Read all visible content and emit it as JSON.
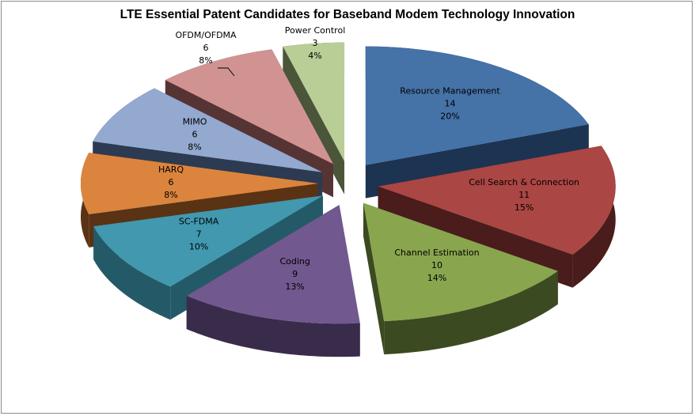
{
  "chart_data": {
    "type": "pie",
    "style": "3d-exploded",
    "title": "LTE Essential Patent Candidates for Baseband Modem Technology Innovation",
    "slices": [
      {
        "label": "Resource Management",
        "value": 14,
        "percent": "20%",
        "color": "#4572a7",
        "side": "#1d3352"
      },
      {
        "label": "Cell Search & Connection",
        "value": 11,
        "percent": "15%",
        "color": "#aa4643",
        "side": "#4a1c1b"
      },
      {
        "label": "Channel Estimation",
        "value": 10,
        "percent": "14%",
        "color": "#89a54e",
        "side": "#3b4a20"
      },
      {
        "label": "Coding",
        "value": 9,
        "percent": "13%",
        "color": "#71588f",
        "side": "#392c4b"
      },
      {
        "label": "SC-FDMA",
        "value": 7,
        "percent": "10%",
        "color": "#4198af",
        "side": "#245a68"
      },
      {
        "label": "HARQ",
        "value": 6,
        "percent": "8%",
        "color": "#db843d",
        "side": "#5a3214"
      },
      {
        "label": "MIMO",
        "value": 6,
        "percent": "8%",
        "color": "#93a9cf",
        "side": "#2c3a52"
      },
      {
        "label": "OFDM/OFDMA",
        "value": 6,
        "percent": "8%",
        "color": "#d19392",
        "side": "#573434"
      },
      {
        "label": "Power Control",
        "value": 3,
        "percent": "4%",
        "color": "#b9cd96",
        "side": "#4a553a"
      }
    ]
  }
}
